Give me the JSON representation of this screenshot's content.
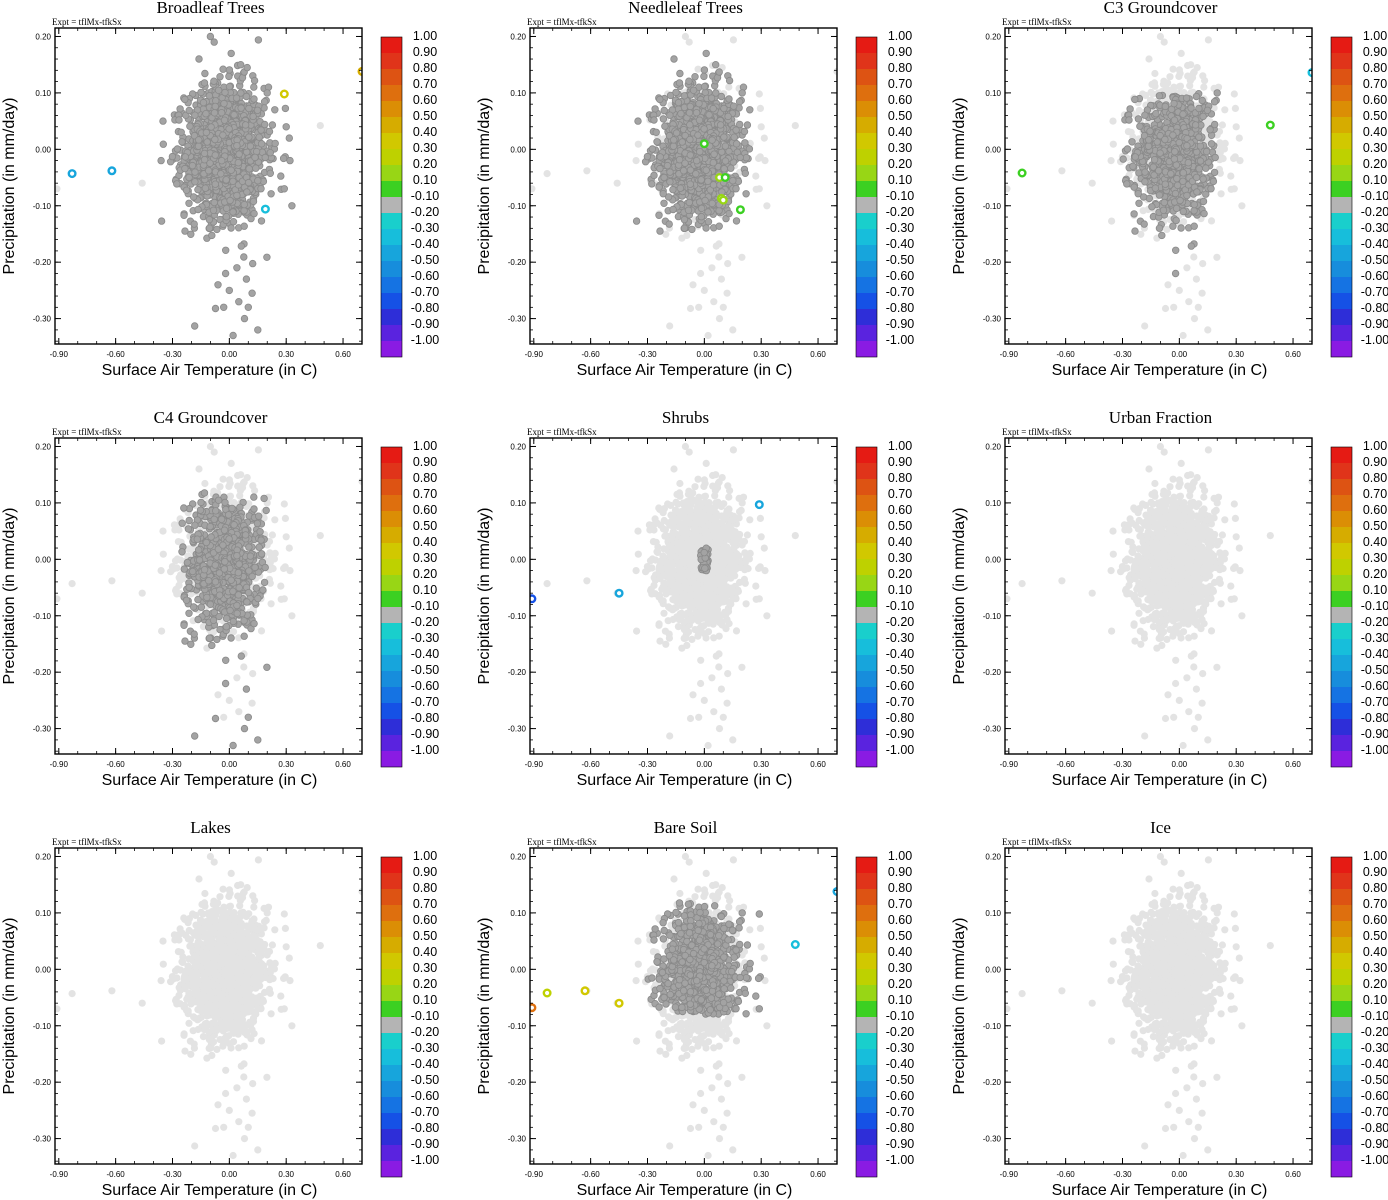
{
  "figure": {
    "expt_label": "Expt = tflMx-tfkSx",
    "xlabel": "Surface Air Temperature (in C)",
    "ylabel": "Precipitation (in mm/day)",
    "xticks": [
      "-0.90",
      "-0.60",
      "-0.30",
      "0.00",
      "0.30",
      "0.60"
    ],
    "yticks": [
      "0.20",
      "0.10",
      "0.00",
      "-0.10",
      "-0.20",
      "-0.30"
    ],
    "colorbar": {
      "labels": [
        "1.00",
        "0.90",
        "0.80",
        "0.70",
        "0.60",
        "0.50",
        "0.40",
        "0.30",
        "0.20",
        "0.10",
        "-0.10",
        "-0.20",
        "-0.30",
        "-0.40",
        "-0.50",
        "-0.60",
        "-0.70",
        "-0.80",
        "-0.90",
        "-1.00"
      ],
      "colors": [
        "#e51b14",
        "#e0341a",
        "#dd5313",
        "#de6f0e",
        "#db8e05",
        "#d6ac00",
        "#d1c800",
        "#bed100",
        "#98d615",
        "#3cd022",
        "#b4b4b4",
        "#19cfcc",
        "#17bedb",
        "#17a5dc",
        "#178ddc",
        "#1573e3",
        "#1551e6",
        "#2e2ed8",
        "#5a23df",
        "#8a1be3"
      ]
    },
    "colors": {
      "background_point": "#e3e3e3",
      "zero_point": "#a3a3a3",
      "zero_point_edge": "#8a8a8a"
    }
  },
  "chart_data": [
    {
      "type": "scatter",
      "title": "Broadleaf Trees",
      "xlabel": "Surface Air Temperature (in C)",
      "ylabel": "Precipitation (in mm/day)",
      "xlim": [
        -0.92,
        0.7
      ],
      "ylim": [
        -0.345,
        0.215
      ],
      "colorbar_range": [
        -1.0,
        1.0
      ],
      "highlight_fraction": 1.0,
      "highlight_region": {
        "x": [
          -0.42,
          0.36
        ],
        "y": [
          -0.34,
          0.22
        ]
      },
      "colored_points": [
        {
          "x": 0.7,
          "y": 0.138,
          "color": "#d6ac00"
        },
        {
          "x": 0.29,
          "y": 0.098,
          "color": "#d1c800"
        },
        {
          "x": -0.83,
          "y": -0.043,
          "color": "#17a5dc"
        },
        {
          "x": -0.62,
          "y": -0.038,
          "color": "#17a5dc"
        },
        {
          "x": 0.19,
          "y": -0.106,
          "color": "#17bedb"
        }
      ]
    },
    {
      "type": "scatter",
      "title": "Needleleaf Trees",
      "xlabel": "Surface Air Temperature (in C)",
      "ylabel": "Precipitation (in mm/day)",
      "xlim": [
        -0.92,
        0.7
      ],
      "ylim": [
        -0.345,
        0.215
      ],
      "colorbar_range": [
        -1.0,
        1.0
      ],
      "highlight_fraction": 0.85,
      "highlight_region": {
        "x": [
          -0.38,
          0.26
        ],
        "y": [
          -0.15,
          0.18
        ]
      },
      "colored_points": [
        {
          "x": 0.0,
          "y": 0.01,
          "color": "#3cd022"
        },
        {
          "x": 0.08,
          "y": -0.05,
          "color": "#98d615"
        },
        {
          "x": 0.11,
          "y": -0.05,
          "color": "#3cd022"
        },
        {
          "x": 0.09,
          "y": -0.087,
          "color": "#98d615"
        },
        {
          "x": 0.1,
          "y": -0.09,
          "color": "#98d615"
        },
        {
          "x": 0.19,
          "y": -0.107,
          "color": "#3cd022"
        }
      ]
    },
    {
      "type": "scatter",
      "title": "C3 Groundcover",
      "xlabel": "Surface Air Temperature (in C)",
      "ylabel": "Precipitation (in mm/day)",
      "xlim": [
        -0.92,
        0.7
      ],
      "ylim": [
        -0.345,
        0.215
      ],
      "colorbar_range": [
        -1.0,
        1.0
      ],
      "highlight_fraction": 0.55,
      "highlight_region": {
        "x": [
          -0.3,
          0.2
        ],
        "y": [
          -0.23,
          0.1
        ]
      },
      "colored_points": [
        {
          "x": 0.7,
          "y": 0.136,
          "color": "#17bedb"
        },
        {
          "x": 0.48,
          "y": 0.043,
          "color": "#3cd022"
        },
        {
          "x": -0.83,
          "y": -0.042,
          "color": "#3cd022"
        }
      ]
    },
    {
      "type": "scatter",
      "title": "C4 Groundcover",
      "xlabel": "Surface Air Temperature (in C)",
      "ylabel": "Precipitation (in mm/day)",
      "xlim": [
        -0.92,
        0.7
      ],
      "ylim": [
        -0.345,
        0.215
      ],
      "colorbar_range": [
        -1.0,
        1.0
      ],
      "highlight_fraction": 0.5,
      "highlight_region": {
        "x": [
          -0.25,
          0.2
        ],
        "y": [
          -0.33,
          0.12
        ]
      },
      "colored_points": []
    },
    {
      "type": "scatter",
      "title": "Shrubs",
      "xlabel": "Surface Air Temperature (in C)",
      "ylabel": "Precipitation (in mm/day)",
      "xlim": [
        -0.92,
        0.7
      ],
      "ylim": [
        -0.345,
        0.215
      ],
      "colorbar_range": [
        -1.0,
        1.0
      ],
      "highlight_fraction": 0.6,
      "highlight_region": {
        "x": [
          -0.02,
          0.02
        ],
        "y": [
          -0.02,
          0.02
        ]
      },
      "colored_points": [
        {
          "x": 0.29,
          "y": 0.097,
          "color": "#17a5dc"
        },
        {
          "x": -0.45,
          "y": -0.06,
          "color": "#17a5dc"
        },
        {
          "x": -0.91,
          "y": -0.07,
          "color": "#1551e6"
        }
      ]
    },
    {
      "type": "scatter",
      "title": "Urban Fraction",
      "xlabel": "Surface Air Temperature (in C)",
      "ylabel": "Precipitation (in mm/day)",
      "xlim": [
        -0.92,
        0.7
      ],
      "ylim": [
        -0.345,
        0.215
      ],
      "colorbar_range": [
        -1.0,
        1.0
      ],
      "highlight_fraction": 0,
      "highlight_region": {
        "x": [
          0,
          0
        ],
        "y": [
          0,
          0
        ]
      },
      "colored_points": []
    },
    {
      "type": "scatter",
      "title": "Lakes",
      "xlabel": "Surface Air Temperature (in C)",
      "ylabel": "Precipitation (in mm/day)",
      "xlim": [
        -0.92,
        0.7
      ],
      "ylim": [
        -0.345,
        0.215
      ],
      "colorbar_range": [
        -1.0,
        1.0
      ],
      "highlight_fraction": 0,
      "highlight_region": {
        "x": [
          0,
          0
        ],
        "y": [
          0,
          0
        ]
      },
      "colored_points": []
    },
    {
      "type": "scatter",
      "title": "Bare Soil",
      "xlabel": "Surface Air Temperature (in C)",
      "ylabel": "Precipitation (in mm/day)",
      "xlim": [
        -0.92,
        0.7
      ],
      "ylim": [
        -0.345,
        0.215
      ],
      "colorbar_range": [
        -1.0,
        1.0
      ],
      "highlight_fraction": 0.6,
      "highlight_region": {
        "x": [
          -0.3,
          0.3
        ],
        "y": [
          -0.08,
          0.12
        ]
      },
      "colored_points": [
        {
          "x": 0.7,
          "y": 0.138,
          "color": "#17a5dc"
        },
        {
          "x": 0.48,
          "y": 0.044,
          "color": "#17bedb"
        },
        {
          "x": -0.83,
          "y": -0.042,
          "color": "#bed100"
        },
        {
          "x": -0.63,
          "y": -0.038,
          "color": "#d1c800"
        },
        {
          "x": -0.45,
          "y": -0.06,
          "color": "#d1c800"
        },
        {
          "x": -0.91,
          "y": -0.068,
          "color": "#de6f0e"
        }
      ]
    },
    {
      "type": "scatter",
      "title": "Ice",
      "xlabel": "Surface Air Temperature (in C)",
      "ylabel": "Precipitation (in mm/day)",
      "xlim": [
        -0.92,
        0.7
      ],
      "ylim": [
        -0.345,
        0.215
      ],
      "colorbar_range": [
        -1.0,
        1.0
      ],
      "highlight_fraction": 0,
      "highlight_region": {
        "x": [
          0,
          0
        ],
        "y": [
          0,
          0
        ]
      },
      "colored_points": []
    }
  ]
}
